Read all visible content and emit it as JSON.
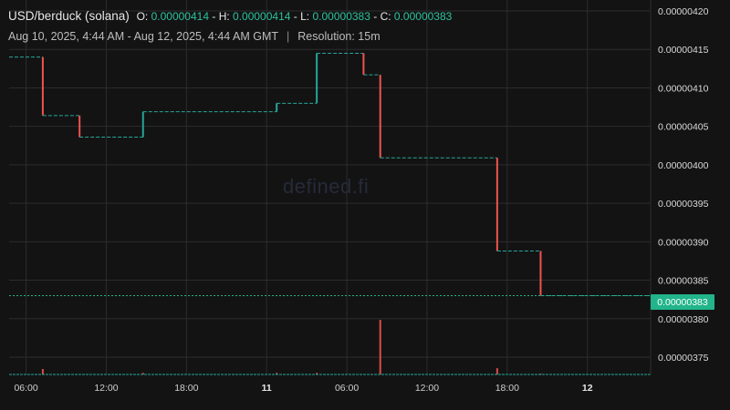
{
  "header": {
    "pair": "USD/berduck (solana)",
    "open_label": "O:",
    "open": "0.00000414",
    "high_label": "H:",
    "high": "0.00000414",
    "low_label": "L:",
    "low": "0.00000383",
    "close_label": "C:",
    "close": "0.00000383",
    "separator": "-"
  },
  "subheader": {
    "range": "Aug 10, 2025, 4:44 AM - Aug 12, 2025, 4:44 AM GMT",
    "divider": "|",
    "resolution": "Resolution: 15m"
  },
  "watermark": "defined.fi",
  "price_tag": "0.00000383",
  "colors": {
    "background": "#131313",
    "up": "#26a69a",
    "down": "#ef5350",
    "accent": "#22b48a",
    "grid": "#2c2c2c"
  },
  "chart_data": {
    "type": "line",
    "style": "step",
    "title": "",
    "xlabel": "",
    "ylabel": "",
    "grid": true,
    "legend": "none",
    "x_unit": "hours from Aug 10, 2025 00:00 GMT",
    "xlim": [
      4.73,
      52.73
    ],
    "ylim": [
      3.7275e-06,
      4.2e-06
    ],
    "y_ticks": [
      "0.00000375",
      "0.00000380",
      "0.00000385",
      "0.00000390",
      "0.00000395",
      "0.00000400",
      "0.00000405",
      "0.00000410",
      "0.00000415",
      "0.00000420"
    ],
    "x_ticks": [
      {
        "x": 6,
        "label": "06:00",
        "bold": false
      },
      {
        "x": 12,
        "label": "12:00",
        "bold": false
      },
      {
        "x": 18,
        "label": "18:00",
        "bold": false
      },
      {
        "x": 24,
        "label": "11",
        "bold": true
      },
      {
        "x": 30,
        "label": "06:00",
        "bold": false
      },
      {
        "x": 36,
        "label": "12:00",
        "bold": false
      },
      {
        "x": 42,
        "label": "18:00",
        "bold": false
      },
      {
        "x": 48,
        "label": "12",
        "bold": true
      }
    ],
    "price_series": {
      "name": "",
      "points": [
        {
          "x": 4.73,
          "y": 4.14e-06
        },
        {
          "x": 7.25,
          "y": 4.064e-06
        },
        {
          "x": 10.0,
          "y": 4.036e-06
        },
        {
          "x": 14.75,
          "y": 4.069e-06
        },
        {
          "x": 24.75,
          "y": 4.08e-06
        },
        {
          "x": 27.75,
          "y": 4.145e-06
        },
        {
          "x": 31.25,
          "y": 4.117e-06
        },
        {
          "x": 32.5,
          "y": 4.009e-06
        },
        {
          "x": 41.25,
          "y": 3.888e-06
        },
        {
          "x": 44.5,
          "y": 3.83e-06
        },
        {
          "x": 52.73,
          "y": 3.83e-06
        }
      ]
    },
    "volume_series": {
      "name": "",
      "bars": [
        {
          "x": 7.25,
          "volume": 7
        },
        {
          "x": 14.75,
          "volume": 2
        },
        {
          "x": 24.75,
          "volume": 2
        },
        {
          "x": 27.75,
          "volume": 2
        },
        {
          "x": 32.5,
          "volume": 70
        },
        {
          "x": 41.25,
          "volume": 8
        },
        {
          "x": 44.5,
          "volume": 1
        }
      ],
      "max_volume": 70
    },
    "last_price": 3.83e-06
  }
}
